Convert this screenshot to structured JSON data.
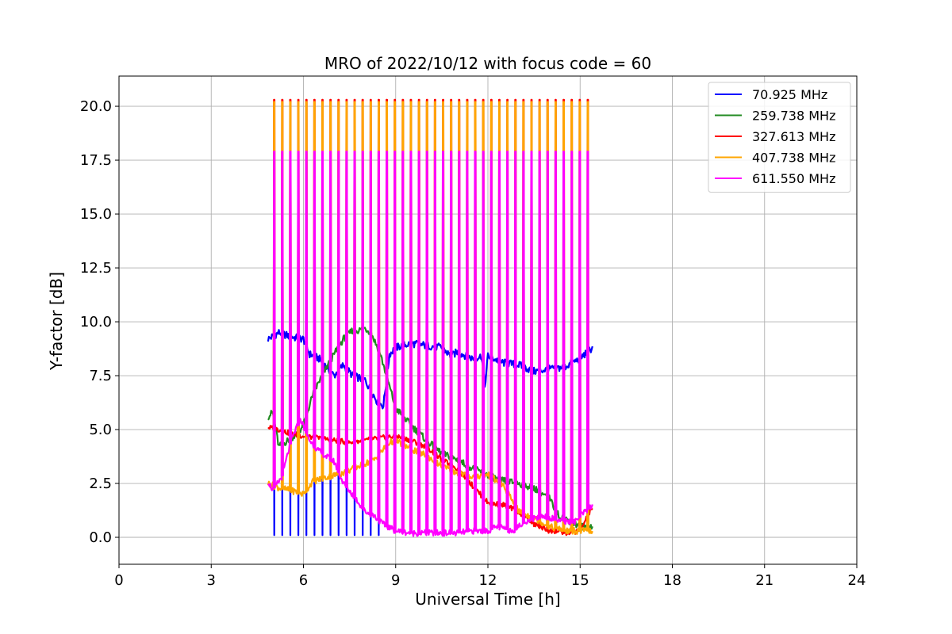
{
  "chart_data": {
    "type": "line",
    "title": "MRO of 2022/10/12 with focus code = 60",
    "xlabel": "Universal Time [h]",
    "ylabel": "Y-factor [dB]",
    "xlim": [
      0,
      24
    ],
    "ylim": [
      -1.25,
      21.4
    ],
    "xticks": [
      0,
      3,
      6,
      9,
      12,
      15,
      18,
      21,
      24
    ],
    "xtick_labels": [
      "0",
      "3",
      "6",
      "9",
      "12",
      "15",
      "18",
      "21",
      "24"
    ],
    "yticks": [
      0.0,
      2.5,
      5.0,
      7.5,
      10.0,
      12.5,
      15.0,
      17.5,
      20.0
    ],
    "ytick_labels": [
      "0.0",
      "2.5",
      "5.0",
      "7.5",
      "10.0",
      "12.5",
      "15.0",
      "17.5",
      "20.0"
    ],
    "grid": true,
    "legend_position": "upper right",
    "calibration_spikes": {
      "start": 5.05,
      "end": 15.25,
      "count": 40,
      "peaks_dB": {
        "orange": 20.2,
        "red": 20.3,
        "magenta": 17.9,
        "blue_dip": 0.1
      }
    },
    "series": [
      {
        "name": " 70.925 MHz",
        "color": "#0000ff",
        "x": [
          4.85,
          5.2,
          5.6,
          6.0,
          6.2,
          6.5,
          7.0,
          7.3,
          7.6,
          8.0,
          8.2,
          8.4,
          8.6,
          8.8,
          9.0,
          9.5,
          10.0,
          10.5,
          10.8,
          11.0,
          11.5,
          11.8,
          11.9,
          12.0,
          12.5,
          13.0,
          13.5,
          14.0,
          14.5,
          15.0,
          15.4
        ],
        "values": [
          9.2,
          9.5,
          9.3,
          9.2,
          8.5,
          8.3,
          7.5,
          8.0,
          7.5,
          7.3,
          6.8,
          6.3,
          6.1,
          8.5,
          8.8,
          9.0,
          8.9,
          8.8,
          8.4,
          8.6,
          8.3,
          8.4,
          7.0,
          8.4,
          8.1,
          8.0,
          7.7,
          7.8,
          7.9,
          8.3,
          8.8
        ]
      },
      {
        "name": "259.738 MHz",
        "color": "#228b22",
        "x": [
          4.85,
          5.0,
          5.2,
          5.5,
          5.8,
          6.0,
          6.3,
          6.5,
          6.8,
          7.0,
          7.3,
          7.6,
          7.8,
          8.0,
          8.2,
          8.5,
          8.8,
          9.0,
          9.5,
          10.0,
          10.5,
          11.0,
          11.5,
          12.0,
          12.3,
          12.6,
          13.0,
          13.5,
          14.0,
          14.3,
          14.6,
          15.0,
          15.4
        ],
        "values": [
          5.6,
          5.8,
          4.2,
          4.5,
          4.8,
          5.2,
          6.6,
          7.2,
          8.0,
          8.5,
          9.2,
          9.6,
          9.6,
          9.7,
          9.5,
          8.5,
          7.0,
          6.0,
          5.2,
          4.5,
          3.9,
          3.6,
          3.2,
          2.9,
          2.7,
          2.6,
          2.5,
          2.3,
          1.8,
          1.0,
          0.8,
          0.5,
          0.5
        ]
      },
      {
        "name": "327.613 MHz",
        "color": "#ff0000",
        "x": [
          4.85,
          5.2,
          5.6,
          6.0,
          6.5,
          7.0,
          7.5,
          8.0,
          8.5,
          9.0,
          9.5,
          10.0,
          10.5,
          11.0,
          11.5,
          12.0,
          12.5,
          13.0,
          13.5,
          14.0,
          14.5,
          15.0,
          15.4
        ],
        "values": [
          5.1,
          5.0,
          4.8,
          4.7,
          4.6,
          4.5,
          4.4,
          4.5,
          4.6,
          4.7,
          4.5,
          4.2,
          3.6,
          3.2,
          2.4,
          1.6,
          1.5,
          1.2,
          0.6,
          0.3,
          0.2,
          0.3,
          1.4
        ]
      },
      {
        "name": "407.738 MHz",
        "color": "#ffa500",
        "x": [
          4.85,
          5.2,
          5.5,
          5.8,
          6.0,
          6.3,
          6.8,
          7.3,
          7.8,
          8.3,
          8.8,
          9.0,
          9.5,
          10.0,
          10.5,
          11.0,
          11.5,
          12.0,
          12.5,
          13.0,
          13.5,
          14.0,
          14.5,
          15.0,
          15.4
        ],
        "values": [
          2.5,
          2.3,
          2.2,
          2.1,
          2.0,
          2.6,
          2.8,
          3.0,
          3.3,
          3.6,
          4.4,
          4.5,
          4.1,
          3.8,
          3.3,
          3.0,
          2.8,
          2.9,
          2.4,
          1.2,
          0.9,
          0.5,
          0.3,
          0.3,
          0.3
        ]
      },
      {
        "name": "611.550 MHz",
        "color": "#ff00ff",
        "x": [
          4.85,
          5.0,
          5.3,
          5.6,
          5.9,
          6.2,
          6.5,
          7.0,
          7.3,
          7.7,
          8.0,
          8.3,
          8.6,
          9.0,
          9.5,
          10.0,
          10.5,
          11.0,
          11.5,
          12.0,
          12.3,
          12.8,
          13.3,
          13.8,
          14.3,
          14.8,
          15.4
        ],
        "values": [
          2.6,
          2.2,
          2.8,
          4.5,
          5.5,
          4.5,
          4.0,
          3.5,
          2.5,
          1.8,
          1.2,
          1.0,
          0.6,
          0.3,
          0.2,
          0.2,
          0.2,
          0.2,
          0.3,
          0.3,
          0.5,
          0.3,
          0.8,
          1.0,
          0.8,
          0.7,
          1.5
        ]
      }
    ]
  }
}
